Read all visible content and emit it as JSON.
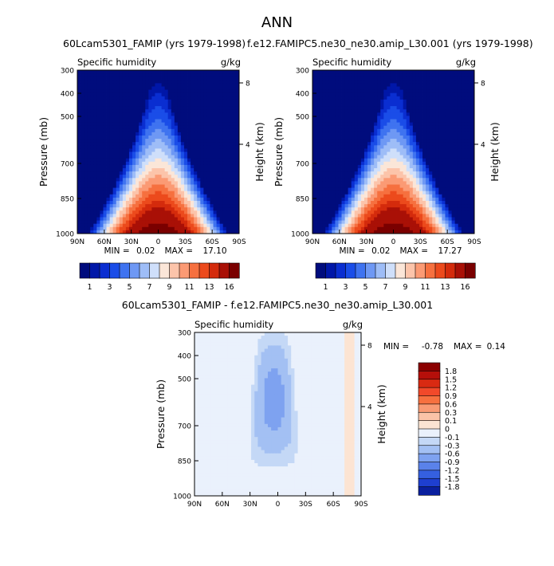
{
  "main_title": "ANN",
  "chart_data": [
    {
      "type": "heatmap",
      "title": "60Lcam5301_FAMIP (yrs 1979-1998)",
      "subtitle_left": "Specific humidity",
      "subtitle_right": "g/kg",
      "xlabel": "",
      "ylabel": "Pressure (mb)",
      "ylabel_right": "Height (km)",
      "x_ticks": [
        "90N",
        "60N",
        "30N",
        "0",
        "30S",
        "60S",
        "90S"
      ],
      "y_ticks": [
        "300",
        "400",
        "500",
        "700",
        "850",
        "1000"
      ],
      "right_ticks": [
        "8",
        "4"
      ],
      "min_label": "MIN =",
      "min_value": "0.02",
      "max_label": "MAX =",
      "max_value": "17.10",
      "colorbar": {
        "levels": [
          "1",
          "3",
          "5",
          "7",
          "9",
          "11",
          "13",
          "16"
        ],
        "colors": [
          "#000c7d",
          "#0017a8",
          "#0a2ed1",
          "#1a4de8",
          "#3f73f0",
          "#6e98f4",
          "#9ebdf7",
          "#cfdffa",
          "#fbe6d8",
          "#fcc4aa",
          "#fb9a74",
          "#f6703f",
          "#ec4a1c",
          "#d42b0c",
          "#a91006",
          "#7a0000"
        ]
      }
    },
    {
      "type": "heatmap",
      "title": "f.e12.FAMIPC5.ne30_ne30.amip_L30.001 (yrs 1979-1998)",
      "subtitle_left": "Specific humidity",
      "subtitle_right": "g/kg",
      "xlabel": "",
      "ylabel": "Pressure (mb)",
      "ylabel_right": "Height (km)",
      "x_ticks": [
        "90N",
        "60N",
        "30N",
        "0",
        "30S",
        "60S",
        "90S"
      ],
      "y_ticks": [
        "300",
        "400",
        "500",
        "700",
        "850",
        "1000"
      ],
      "right_ticks": [
        "8",
        "4"
      ],
      "min_label": "MIN =",
      "min_value": "0.02",
      "max_label": "MAX =",
      "max_value": "17.27",
      "colorbar": {
        "levels": [
          "1",
          "3",
          "5",
          "7",
          "9",
          "11",
          "13",
          "16"
        ],
        "colors": [
          "#000c7d",
          "#0017a8",
          "#0a2ed1",
          "#1a4de8",
          "#3f73f0",
          "#6e98f4",
          "#9ebdf7",
          "#cfdffa",
          "#fbe6d8",
          "#fcc4aa",
          "#fb9a74",
          "#f6703f",
          "#ec4a1c",
          "#d42b0c",
          "#a91006",
          "#7a0000"
        ]
      }
    },
    {
      "type": "heatmap",
      "title": "60Lcam5301_FAMIP - f.e12.FAMIPC5.ne30_ne30.amip_L30.001",
      "subtitle_left": "Specific humidity",
      "subtitle_right": "g/kg",
      "xlabel": "",
      "ylabel": "Pressure (mb)",
      "ylabel_right": "Height (km)",
      "x_ticks": [
        "90N",
        "60N",
        "30N",
        "0",
        "30S",
        "60S",
        "90S"
      ],
      "y_ticks": [
        "300",
        "400",
        "500",
        "700",
        "850",
        "1000"
      ],
      "right_ticks": [
        "8",
        "4"
      ],
      "min_label": "MIN =",
      "min_value": "-0.78",
      "max_label": "MAX =",
      "max_value": "0.14",
      "colorbar": {
        "levels": [
          "1.8",
          "1.5",
          "1.2",
          "0.9",
          "0.6",
          "0.3",
          "0.1",
          "0",
          "-0.1",
          "-0.3",
          "-0.6",
          "-0.9",
          "-1.2",
          "-1.5",
          "-1.8"
        ],
        "colors": [
          "#8b0000",
          "#b50f0a",
          "#d92a12",
          "#f2492a",
          "#f7703f",
          "#f99a74",
          "#fbc3a8",
          "#fce4d3",
          "#eaf1fc",
          "#c4d8f6",
          "#a3c0f3",
          "#7ea2f0",
          "#5a82ea",
          "#3560e0",
          "#1e3fd0",
          "#0a1f9e"
        ]
      }
    }
  ]
}
